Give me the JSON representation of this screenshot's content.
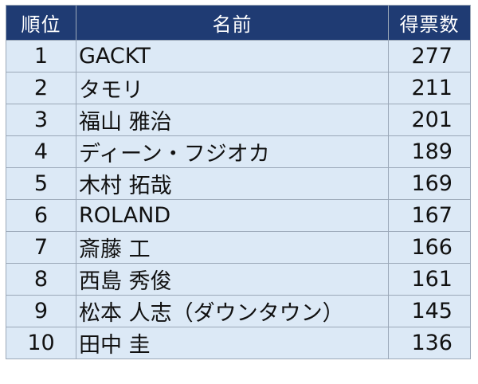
{
  "table": {
    "headers": {
      "rank": "順位",
      "name": "名前",
      "votes": "得票数"
    },
    "rows": [
      {
        "rank": "1",
        "name": "GACKT",
        "votes": "277"
      },
      {
        "rank": "2",
        "name": "タモリ",
        "votes": "211"
      },
      {
        "rank": "3",
        "name": "福山 雅治",
        "votes": "201"
      },
      {
        "rank": "4",
        "name": "ディーン・フジオカ",
        "votes": "189"
      },
      {
        "rank": "5",
        "name": "木村 拓哉",
        "votes": "169"
      },
      {
        "rank": "6",
        "name": "ROLAND",
        "votes": "167"
      },
      {
        "rank": "7",
        "name": "斎藤 工",
        "votes": "166"
      },
      {
        "rank": "8",
        "name": "西島 秀俊",
        "votes": "161"
      },
      {
        "rank": "9",
        "name": "松本 人志（ダウンタウン）",
        "votes": "145"
      },
      {
        "rank": "10",
        "name": "田中 圭",
        "votes": "136"
      }
    ],
    "colors": {
      "header_background": "#1f3b73",
      "header_text": "#ffffff",
      "row_background": "#dce9f6",
      "border": "#9ba8b8"
    }
  }
}
